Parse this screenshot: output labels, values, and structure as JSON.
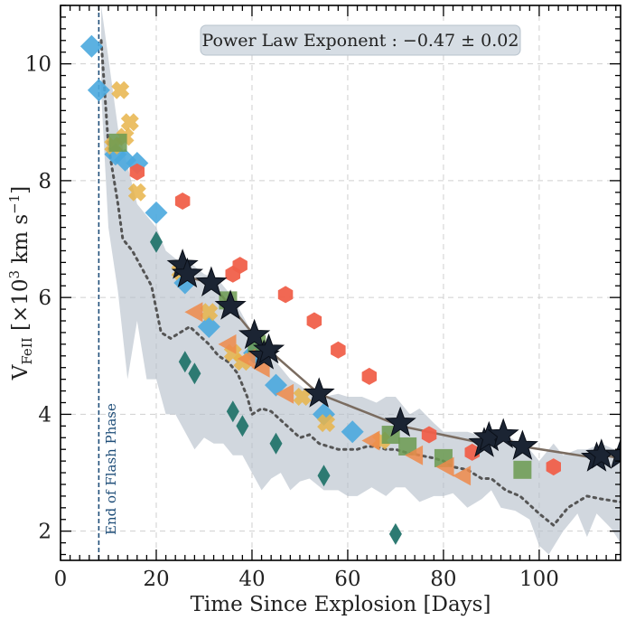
{
  "chart_data": {
    "type": "scatter",
    "xlabel": "Time Since Explosion [Days]",
    "ylabel_main": "V",
    "ylabel_sub": "FeII",
    "ylabel_rest": " [×10",
    "ylabel_exp": "3",
    "ylabel_unit": " km s",
    "ylabel_unit_exp": "−1",
    "ylabel_close": "]",
    "xlim": [
      0,
      117
    ],
    "ylim": [
      1.5,
      11.0
    ],
    "xticks": [
      0,
      20,
      40,
      60,
      80,
      100
    ],
    "yticks": [
      2,
      4,
      6,
      8,
      10
    ],
    "grid": true,
    "annotation": "Power Law Exponent : −0.47 ± 0.02",
    "vline": {
      "x": 8.0,
      "label": "End of Flash Phase",
      "color": "#1f4e79"
    },
    "band": {
      "color": "#b4bec9",
      "upper": [
        [
          8.5,
          11.0
        ],
        [
          12,
          8.9
        ],
        [
          16,
          7.6
        ],
        [
          20,
          7.2
        ],
        [
          22,
          6.8
        ],
        [
          25,
          6.6
        ],
        [
          27,
          6.6
        ],
        [
          30,
          6.4
        ],
        [
          33,
          6.3
        ],
        [
          36,
          6.0
        ],
        [
          38,
          5.7
        ],
        [
          40,
          5.4
        ],
        [
          42,
          5.1
        ],
        [
          45,
          4.9
        ],
        [
          48,
          4.6
        ],
        [
          50,
          4.5
        ],
        [
          53,
          4.3
        ],
        [
          55,
          4.3
        ],
        [
          58,
          4.35
        ],
        [
          60,
          4.3
        ],
        [
          63,
          4.3
        ],
        [
          66,
          4.2
        ],
        [
          68,
          4.3
        ],
        [
          70,
          4.3
        ],
        [
          73,
          4.0
        ],
        [
          75,
          4.1
        ],
        [
          78,
          3.85
        ],
        [
          80,
          3.7
        ],
        [
          83,
          3.7
        ],
        [
          85,
          3.7
        ],
        [
          87,
          3.65
        ],
        [
          90,
          3.55
        ],
        [
          93,
          3.65
        ],
        [
          95,
          3.55
        ],
        [
          98,
          3.4
        ],
        [
          100,
          3.2
        ],
        [
          103,
          3.5
        ],
        [
          105,
          3.3
        ],
        [
          108,
          3.4
        ],
        [
          110,
          3.4
        ],
        [
          113,
          3.5
        ],
        [
          117,
          3.35
        ]
      ],
      "lower": [
        [
          117,
          1.8
        ],
        [
          115,
          2.05
        ],
        [
          112,
          2.3
        ],
        [
          110,
          1.9
        ],
        [
          108,
          2.3
        ],
        [
          105,
          2.0
        ],
        [
          102,
          1.6
        ],
        [
          100,
          1.75
        ],
        [
          98,
          2.2
        ],
        [
          95,
          2.35
        ],
        [
          92,
          2.4
        ],
        [
          90,
          2.7
        ],
        [
          88,
          2.55
        ],
        [
          85,
          2.4
        ],
        [
          82,
          2.65
        ],
        [
          80,
          2.6
        ],
        [
          78,
          2.6
        ],
        [
          75,
          2.5
        ],
        [
          72,
          2.75
        ],
        [
          70,
          2.75
        ],
        [
          68,
          2.6
        ],
        [
          65,
          2.75
        ],
        [
          62,
          2.6
        ],
        [
          60,
          2.6
        ],
        [
          58,
          2.7
        ],
        [
          55,
          2.7
        ],
        [
          52,
          2.9
        ],
        [
          50,
          2.85
        ],
        [
          48,
          2.7
        ],
        [
          46,
          3.0
        ],
        [
          44,
          2.9
        ],
        [
          42,
          2.7
        ],
        [
          40,
          3.0
        ],
        [
          38,
          3.3
        ],
        [
          36,
          3.3
        ],
        [
          34,
          3.5
        ],
        [
          32,
          3.5
        ],
        [
          30,
          3.6
        ],
        [
          28,
          3.4
        ],
        [
          26,
          3.7
        ],
        [
          24,
          4.0
        ],
        [
          22,
          4.0
        ],
        [
          20,
          4.6
        ],
        [
          18,
          4.6
        ],
        [
          16,
          5.6
        ],
        [
          14,
          4.6
        ],
        [
          12,
          6.1
        ],
        [
          10,
          7.2
        ],
        [
          8.5,
          9.5
        ]
      ]
    },
    "median_line": {
      "style": "dotted",
      "color": "#555555",
      "points": [
        [
          8.5,
          10.4
        ],
        [
          10,
          8.6
        ],
        [
          12,
          7.6
        ],
        [
          13,
          7.0
        ],
        [
          15,
          6.8
        ],
        [
          17,
          6.5
        ],
        [
          19,
          6.2
        ],
        [
          21,
          5.4
        ],
        [
          23,
          5.3
        ],
        [
          25,
          5.4
        ],
        [
          27,
          5.5
        ],
        [
          29,
          5.35
        ],
        [
          31,
          5.2
        ],
        [
          33,
          5.0
        ],
        [
          35,
          4.9
        ],
        [
          37,
          4.7
        ],
        [
          39,
          4.3
        ],
        [
          40,
          4.0
        ],
        [
          42,
          4.1
        ],
        [
          44,
          4.05
        ],
        [
          46,
          3.9
        ],
        [
          48,
          3.75
        ],
        [
          50,
          3.6
        ],
        [
          52,
          3.65
        ],
        [
          54,
          3.5
        ],
        [
          56,
          3.45
        ],
        [
          58,
          3.4
        ],
        [
          60,
          3.4
        ],
        [
          62,
          3.4
        ],
        [
          64,
          3.45
        ],
        [
          66,
          3.45
        ],
        [
          68,
          3.4
        ],
        [
          70,
          3.4
        ],
        [
          72,
          3.35
        ],
        [
          75,
          3.3
        ],
        [
          78,
          3.25
        ],
        [
          80,
          3.2
        ],
        [
          82,
          3.1
        ],
        [
          85,
          3.05
        ],
        [
          88,
          2.9
        ],
        [
          90,
          2.9
        ],
        [
          93,
          2.7
        ],
        [
          96,
          2.6
        ],
        [
          100,
          2.3
        ],
        [
          103,
          2.1
        ],
        [
          106,
          2.4
        ],
        [
          110,
          2.6
        ],
        [
          113,
          2.55
        ],
        [
          117,
          2.5
        ]
      ]
    },
    "fit_line": {
      "color": "#7a6c60",
      "points": [
        [
          25.5,
          6.55
        ],
        [
          26.5,
          6.35
        ],
        [
          31.5,
          6.25
        ],
        [
          35.5,
          5.85
        ],
        [
          40.5,
          5.35
        ],
        [
          42.5,
          5.0
        ],
        [
          43.5,
          5.1
        ],
        [
          54,
          4.35
        ],
        [
          71,
          3.8
        ],
        [
          88.5,
          3.5
        ],
        [
          89.5,
          3.6
        ],
        [
          92.5,
          3.6
        ],
        [
          96.5,
          3.45
        ],
        [
          112,
          3.25
        ],
        [
          113,
          3.3
        ],
        [
          117,
          3.25
        ]
      ]
    },
    "series": [
      {
        "name": "stars",
        "marker": "star",
        "color": "#1b2433",
        "points": [
          [
            25.5,
            6.55
          ],
          [
            26.5,
            6.4
          ],
          [
            31.5,
            6.25
          ],
          [
            35.5,
            5.85
          ],
          [
            40.5,
            5.35
          ],
          [
            42.5,
            5.0
          ],
          [
            43.5,
            5.1
          ],
          [
            54,
            4.35
          ],
          [
            71,
            3.85
          ],
          [
            88.5,
            3.5
          ],
          [
            89.5,
            3.6
          ],
          [
            92.5,
            3.65
          ],
          [
            96.5,
            3.45
          ],
          [
            112,
            3.25
          ],
          [
            113,
            3.3
          ],
          [
            117,
            3.3
          ]
        ]
      },
      {
        "name": "red hexagons",
        "marker": "hexagon",
        "color": "#f0604a",
        "points": [
          [
            16,
            8.15
          ],
          [
            25.5,
            7.65
          ],
          [
            36,
            6.4
          ],
          [
            37.5,
            6.55
          ],
          [
            47,
            6.05
          ],
          [
            53,
            5.6
          ],
          [
            58,
            5.1
          ],
          [
            64.5,
            4.65
          ],
          [
            77,
            3.65
          ],
          [
            86,
            3.35
          ],
          [
            103,
            3.1
          ]
        ]
      },
      {
        "name": "blue diamonds",
        "marker": "diamond",
        "color": "#4aa8de",
        "points": [
          [
            6.5,
            10.3
          ],
          [
            8,
            9.55
          ],
          [
            11.5,
            8.45
          ],
          [
            13.5,
            8.35
          ],
          [
            16,
            8.3
          ],
          [
            20,
            7.45
          ],
          [
            26,
            6.25
          ],
          [
            31,
            5.5
          ],
          [
            40.5,
            5.05
          ],
          [
            45,
            4.5
          ],
          [
            55,
            4.0
          ],
          [
            61,
            3.7
          ]
        ]
      },
      {
        "name": "dark green diamonds",
        "marker": "diamond_thin",
        "color": "#2d7a72",
        "points": [
          [
            20,
            6.95
          ],
          [
            26,
            4.9
          ],
          [
            28,
            4.7
          ],
          [
            36,
            4.05
          ],
          [
            38,
            3.8
          ],
          [
            45,
            3.5
          ],
          [
            55,
            2.95
          ],
          [
            70,
            1.95
          ]
        ]
      },
      {
        "name": "yellow crosses",
        "marker": "cross",
        "color": "#e8b44a",
        "points": [
          [
            11,
            8.6
          ],
          [
            12.5,
            9.55
          ],
          [
            13.5,
            8.75
          ],
          [
            14.5,
            9.0
          ],
          [
            16,
            7.8
          ],
          [
            25,
            6.45
          ],
          [
            31,
            5.75
          ],
          [
            36,
            5.05
          ],
          [
            38,
            4.9
          ],
          [
            50.5,
            4.3
          ],
          [
            55.5,
            3.85
          ],
          [
            67,
            3.55
          ]
        ]
      },
      {
        "name": "green squares",
        "marker": "square",
        "color": "#6b9a50",
        "points": [
          [
            12,
            8.65
          ],
          [
            35,
            5.95
          ],
          [
            41,
            5.2
          ],
          [
            69,
            3.65
          ],
          [
            72.5,
            3.45
          ],
          [
            80,
            3.25
          ],
          [
            96.5,
            3.05
          ]
        ]
      },
      {
        "name": "orange triangles",
        "marker": "triangle_left",
        "color": "#ee8a4a",
        "points": [
          [
            28,
            5.75
          ],
          [
            35,
            5.2
          ],
          [
            39,
            4.95
          ],
          [
            42,
            4.8
          ],
          [
            47,
            4.35
          ],
          [
            65,
            3.55
          ],
          [
            74,
            3.3
          ],
          [
            80.5,
            3.1
          ],
          [
            84,
            2.95
          ]
        ]
      }
    ]
  }
}
